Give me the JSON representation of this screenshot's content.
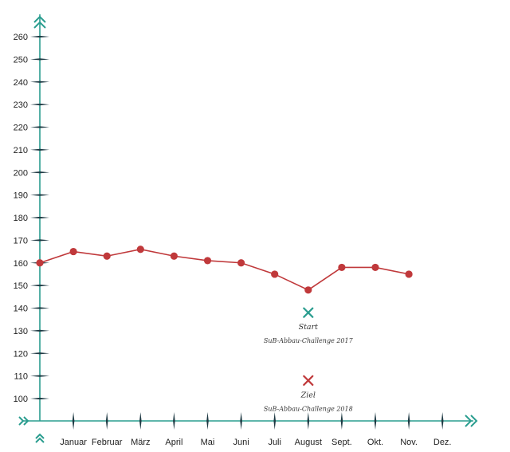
{
  "chart_data": {
    "type": "line",
    "categories": [
      "",
      "Januar",
      "Februar",
      "März",
      "April",
      "Mai",
      "Juni",
      "Juli",
      "August",
      "Sept.",
      "Okt.",
      "Nov.",
      "Dez."
    ],
    "series": [
      {
        "values": [
          160,
          165,
          163,
          166,
          163,
          161,
          160,
          155,
          148,
          158,
          158,
          155,
          null
        ],
        "color": "#c0393b"
      }
    ],
    "y_ticks": [
      100,
      110,
      120,
      130,
      140,
      150,
      160,
      170,
      180,
      190,
      200,
      210,
      220,
      230,
      240,
      250,
      260
    ],
    "ylim": [
      90,
      263
    ],
    "grid": false,
    "axis_color": "#2a9d8f",
    "annotations": [
      {
        "marker": "x",
        "color": "#2a9d8f",
        "category": "August",
        "value": 138,
        "title": "Start",
        "subtitle": "SuB-Abbau-Challenge 2017"
      },
      {
        "marker": "x",
        "color": "#c0393b",
        "category": "August",
        "value": 108,
        "title": "Ziel",
        "subtitle": "SuB-Abbau-Challenge 2018"
      }
    ]
  }
}
